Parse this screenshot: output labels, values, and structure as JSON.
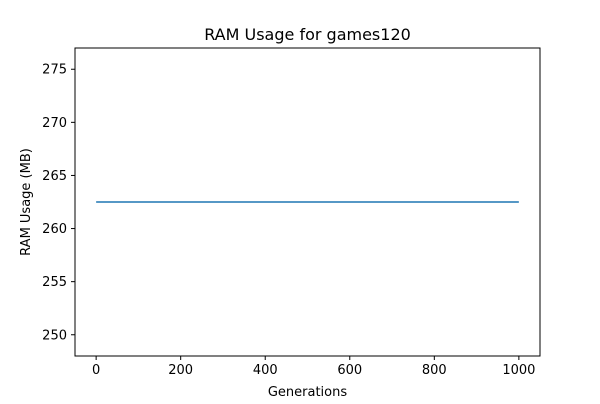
{
  "chart_data": {
    "type": "line",
    "title": "RAM Usage for games120",
    "xlabel": "Generations",
    "ylabel": "RAM Usage (MB)",
    "xlim": [
      -50,
      1050
    ],
    "ylim": [
      248,
      277
    ],
    "x_ticks": [
      0,
      200,
      400,
      600,
      800,
      1000
    ],
    "y_ticks": [
      250,
      255,
      260,
      265,
      270,
      275
    ],
    "grid": false,
    "series": [
      {
        "x": [
          0,
          1000
        ],
        "y": [
          262.5,
          262.5
        ],
        "color": "#1f77b4"
      }
    ]
  }
}
